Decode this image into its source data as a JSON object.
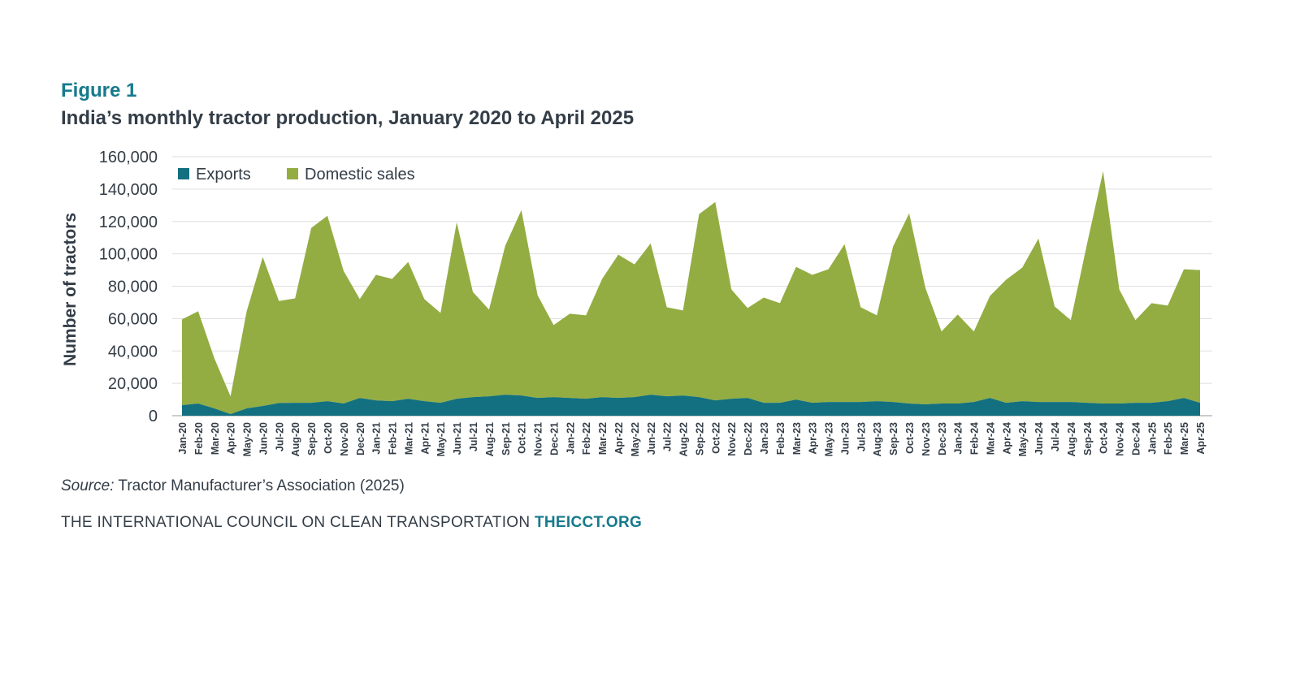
{
  "figure": {
    "label": "Figure 1",
    "title": "India’s monthly tractor production, January 2020 to April 2025",
    "source_prefix": "Source:",
    "source_text": " Tractor Manufacturer’s Association (2025)",
    "footer_org": "THE INTERNATIONAL COUNCIL ON CLEAN TRANSPORTATION ",
    "footer_site": "THEICCT.ORG"
  },
  "colors": {
    "exports": "#127080",
    "domestic": "#93ad42",
    "accent": "#167a8c",
    "text": "#333d47",
    "grid": "#dedede"
  },
  "chart_data": {
    "type": "area",
    "stacked": true,
    "ylabel": "Number of tractors",
    "xlabel": "",
    "ylim": [
      0,
      160000
    ],
    "yticks": [
      0,
      20000,
      40000,
      60000,
      80000,
      100000,
      120000,
      140000,
      160000
    ],
    "ytick_labels": [
      "0",
      "20,000",
      "40,000",
      "60,000",
      "80,000",
      "100,000",
      "120,000",
      "140,000",
      "160,000"
    ],
    "grid": true,
    "legend": "top-left",
    "categories": [
      "Jan-20",
      "Feb-20",
      "Mar-20",
      "Apr-20",
      "May-20",
      "Jun-20",
      "Jul-20",
      "Aug-20",
      "Sep-20",
      "Oct-20",
      "Nov-20",
      "Dec-20",
      "Jan-21",
      "Feb-21",
      "Mar-21",
      "Apr-21",
      "May-21",
      "Jun-21",
      "Jul-21",
      "Aug-21",
      "Sep-21",
      "Oct-21",
      "Nov-21",
      "Dec-21",
      "Jan-22",
      "Feb-22",
      "Mar-22",
      "Apr-22",
      "May-22",
      "Jun-22",
      "Jul-22",
      "Aug-22",
      "Sep-22",
      "Oct-22",
      "Nov-22",
      "Dec-22",
      "Jan-23",
      "Feb-23",
      "Mar-23",
      "Apr-23",
      "May-23",
      "Jun-23",
      "Jul-23",
      "Aug-23",
      "Sep-23",
      "Oct-23",
      "Nov-23",
      "Dec-23",
      "Jan-24",
      "Feb-24",
      "Mar-24",
      "Apr-24",
      "May-24",
      "Jun-24",
      "Jul-24",
      "Aug-24",
      "Sep-24",
      "Oct-24",
      "Nov-24",
      "Dec-24",
      "Jan-25",
      "Feb-25",
      "Mar-25",
      "Apr-25"
    ],
    "series": [
      {
        "name": "Exports",
        "color": "#127080",
        "values": [
          6500,
          7500,
          4500,
          1000,
          4500,
          6000,
          7800,
          8000,
          8000,
          9000,
          7500,
          11000,
          9500,
          9000,
          10500,
          9000,
          8000,
          10500,
          11500,
          12000,
          13000,
          12500,
          11000,
          11500,
          11000,
          10500,
          11500,
          11000,
          11500,
          13000,
          12000,
          12500,
          11500,
          9500,
          10500,
          11000,
          8000,
          8000,
          10000,
          8000,
          8500,
          8500,
          8500,
          9000,
          8500,
          7500,
          7000,
          7500,
          7500,
          8500,
          11000,
          8000,
          9000,
          8500,
          8500,
          8500,
          8000,
          7500,
          7500,
          8000,
          8000,
          9000,
          11000,
          8000
        ]
      },
      {
        "name": "Domestic sales",
        "color": "#93ad42",
        "values": [
          53000,
          57000,
          31000,
          11000,
          60000,
          92000,
          63000,
          64500,
          108000,
          114500,
          82000,
          61000,
          77500,
          75500,
          84500,
          63000,
          55500,
          109000,
          65000,
          53500,
          92000,
          114500,
          63500,
          44500,
          52000,
          51500,
          73000,
          88500,
          82000,
          93500,
          55000,
          52500,
          113000,
          122500,
          67500,
          55500,
          65000,
          61500,
          82000,
          79000,
          82000,
          97500,
          58500,
          53000,
          96000,
          117500,
          72000,
          44500,
          55000,
          43500,
          63000,
          76000,
          82500,
          101000,
          59000,
          50500,
          98000,
          143500,
          70500,
          51000,
          61500,
          59000,
          79500,
          82000
        ]
      }
    ]
  }
}
